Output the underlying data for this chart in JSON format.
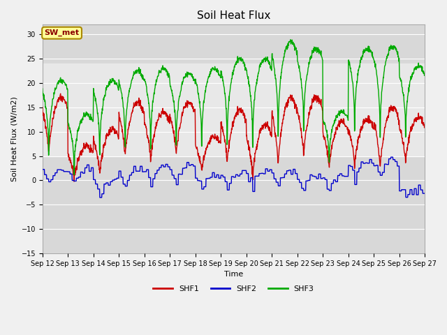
{
  "title": "Soil Heat Flux",
  "ylabel": "Soil Heat Flux (W/m2)",
  "xlabel": "Time",
  "ylim": [
    -15,
    32
  ],
  "yticks": [
    -15,
    -10,
    -5,
    0,
    5,
    10,
    15,
    20,
    25,
    30
  ],
  "figure_bg": "#f0f0f0",
  "plot_bg": "#d8d8d8",
  "shaded_light_band": [
    5,
    24
  ],
  "shaded_light_color": "#e8e8e8",
  "annotation_text": "SW_met",
  "annotation_color": "#8B0000",
  "annotation_bg": "#FFFF99",
  "annotation_edge": "#aa8800",
  "series_colors": [
    "#cc0000",
    "#0000cc",
    "#00aa00"
  ],
  "series_names": [
    "SHF1",
    "SHF2",
    "SHF3"
  ],
  "x_tick_labels": [
    "Sep 12",
    "Sep 13",
    "Sep 14",
    "Sep 15",
    "Sep 16",
    "Sep 17",
    "Sep 18",
    "Sep 19",
    "Sep 20",
    "Sep 21",
    "Sep 22",
    "Sep 23",
    "Sep 24",
    "Sep 25",
    "Sep 26",
    "Sep 27"
  ],
  "n_days": 15,
  "grid_color": "#ffffff",
  "title_fontsize": 11,
  "axis_fontsize": 8,
  "tick_fontsize": 7,
  "legend_fontsize": 8
}
